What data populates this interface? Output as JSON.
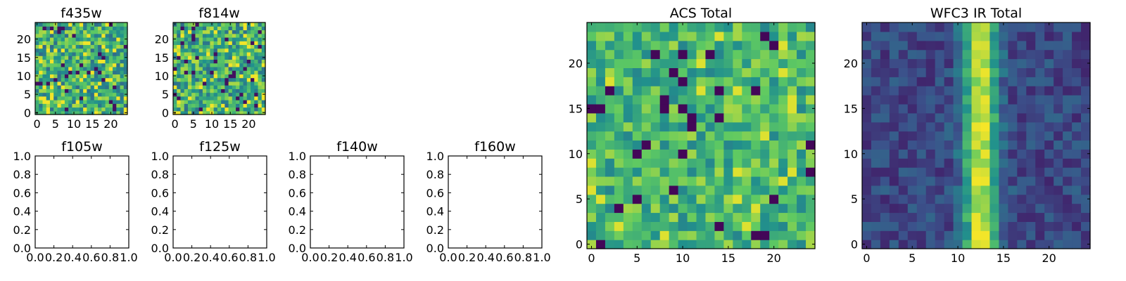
{
  "chart_data": [
    {
      "id": "f435w",
      "type": "heatmap",
      "title": "f435w",
      "n": 25,
      "seed": 11,
      "style": "noise",
      "xticks": [
        "0",
        "5",
        "10",
        "15",
        "20"
      ],
      "yticks": [
        "0",
        "5",
        "10",
        "15",
        "20"
      ]
    },
    {
      "id": "f814w",
      "type": "heatmap",
      "title": "f814w",
      "n": 25,
      "seed": 23,
      "style": "noise",
      "xticks": [
        "0",
        "5",
        "10",
        "15",
        "20"
      ],
      "yticks": [
        "0",
        "5",
        "10",
        "15",
        "20"
      ]
    },
    {
      "id": "f105w",
      "type": "empty",
      "title": "f105w",
      "xlim": [
        0,
        1
      ],
      "ylim": [
        0,
        1
      ],
      "xticks": [
        "0.0",
        "0.2",
        "0.4",
        "0.6",
        "0.8",
        "1.0"
      ],
      "yticks": [
        "0.0",
        "0.2",
        "0.4",
        "0.6",
        "0.8",
        "1.0"
      ]
    },
    {
      "id": "f125w",
      "type": "empty",
      "title": "f125w",
      "xlim": [
        0,
        1
      ],
      "ylim": [
        0,
        1
      ],
      "xticks": [
        "0.0",
        "0.2",
        "0.4",
        "0.6",
        "0.8",
        "1.0"
      ],
      "yticks": [
        "0.0",
        "0.2",
        "0.4",
        "0.6",
        "0.8",
        "1.0"
      ]
    },
    {
      "id": "f140w",
      "type": "empty",
      "title": "f140w",
      "xlim": [
        0,
        1
      ],
      "ylim": [
        0,
        1
      ],
      "xticks": [
        "0.0",
        "0.2",
        "0.4",
        "0.6",
        "0.8",
        "1.0"
      ],
      "yticks": [
        "0.0",
        "0.2",
        "0.4",
        "0.6",
        "0.8",
        "1.0"
      ]
    },
    {
      "id": "f160w",
      "type": "empty",
      "title": "f160w",
      "xlim": [
        0,
        1
      ],
      "ylim": [
        0,
        1
      ],
      "xticks": [
        "0.0",
        "0.2",
        "0.4",
        "0.6",
        "0.8",
        "1.0"
      ],
      "yticks": [
        "0.0",
        "0.2",
        "0.4",
        "0.6",
        "0.8",
        "1.0"
      ]
    },
    {
      "id": "acs-total",
      "type": "heatmap",
      "title": "ACS Total",
      "n": 25,
      "seed": 37,
      "style": "acs",
      "xticks": [
        "0",
        "5",
        "10",
        "15",
        "20"
      ],
      "yticks": [
        "0",
        "5",
        "10",
        "15",
        "20"
      ]
    },
    {
      "id": "wfc3-ir-total",
      "type": "heatmap",
      "title": "WFC3 IR Total",
      "n": 25,
      "seed": 53,
      "style": "stripe",
      "xticks": [
        "0",
        "5",
        "10",
        "15",
        "20"
      ],
      "yticks": [
        "0",
        "5",
        "10",
        "15",
        "20"
      ]
    }
  ],
  "colormap": [
    "#440154",
    "#3b528b",
    "#21918c",
    "#5ec962",
    "#fde725"
  ]
}
